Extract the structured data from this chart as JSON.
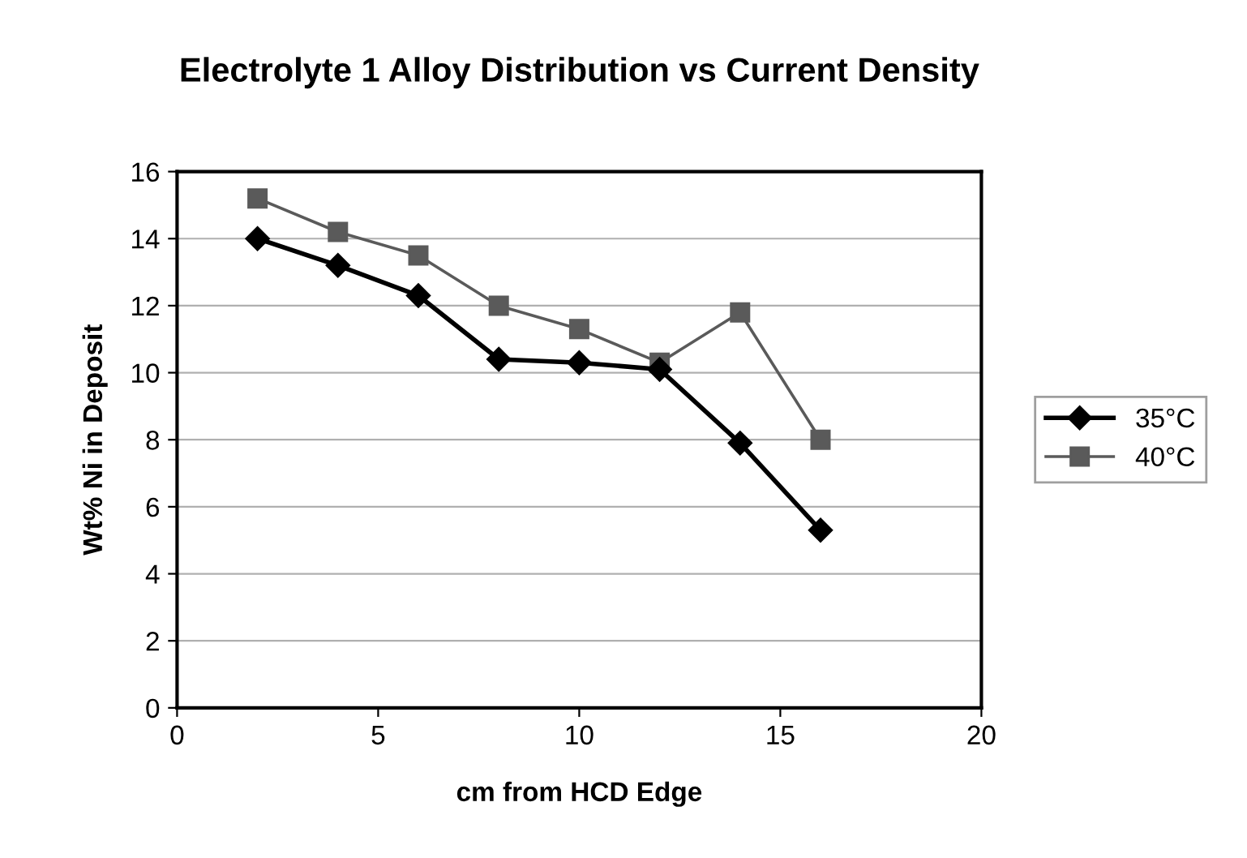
{
  "chart_data": {
    "type": "line",
    "title": "Electrolyte 1 Alloy Distribution vs Current Density",
    "xlabel": "cm from HCD Edge",
    "ylabel": "Wt% Ni in Deposit",
    "x": [
      2,
      4,
      6,
      8,
      10,
      12,
      14,
      16
    ],
    "series": [
      {
        "name": "35°C",
        "color": "#000000",
        "marker": "diamond",
        "values": [
          14.0,
          13.2,
          12.3,
          10.4,
          10.3,
          10.1,
          7.9,
          5.3
        ]
      },
      {
        "name": "40°C",
        "color": "#5a5a5a",
        "marker": "square",
        "values": [
          15.2,
          14.2,
          13.5,
          12.0,
          11.3,
          10.3,
          11.8,
          8.0
        ]
      }
    ],
    "xlim": [
      0,
      20
    ],
    "xticks": [
      0,
      5,
      10,
      15,
      20
    ],
    "ylim": [
      0,
      16
    ],
    "yticks": [
      0,
      2,
      4,
      6,
      8,
      10,
      12,
      14,
      16
    ],
    "grid": "y",
    "legend": "right",
    "line_style": "solid"
  }
}
